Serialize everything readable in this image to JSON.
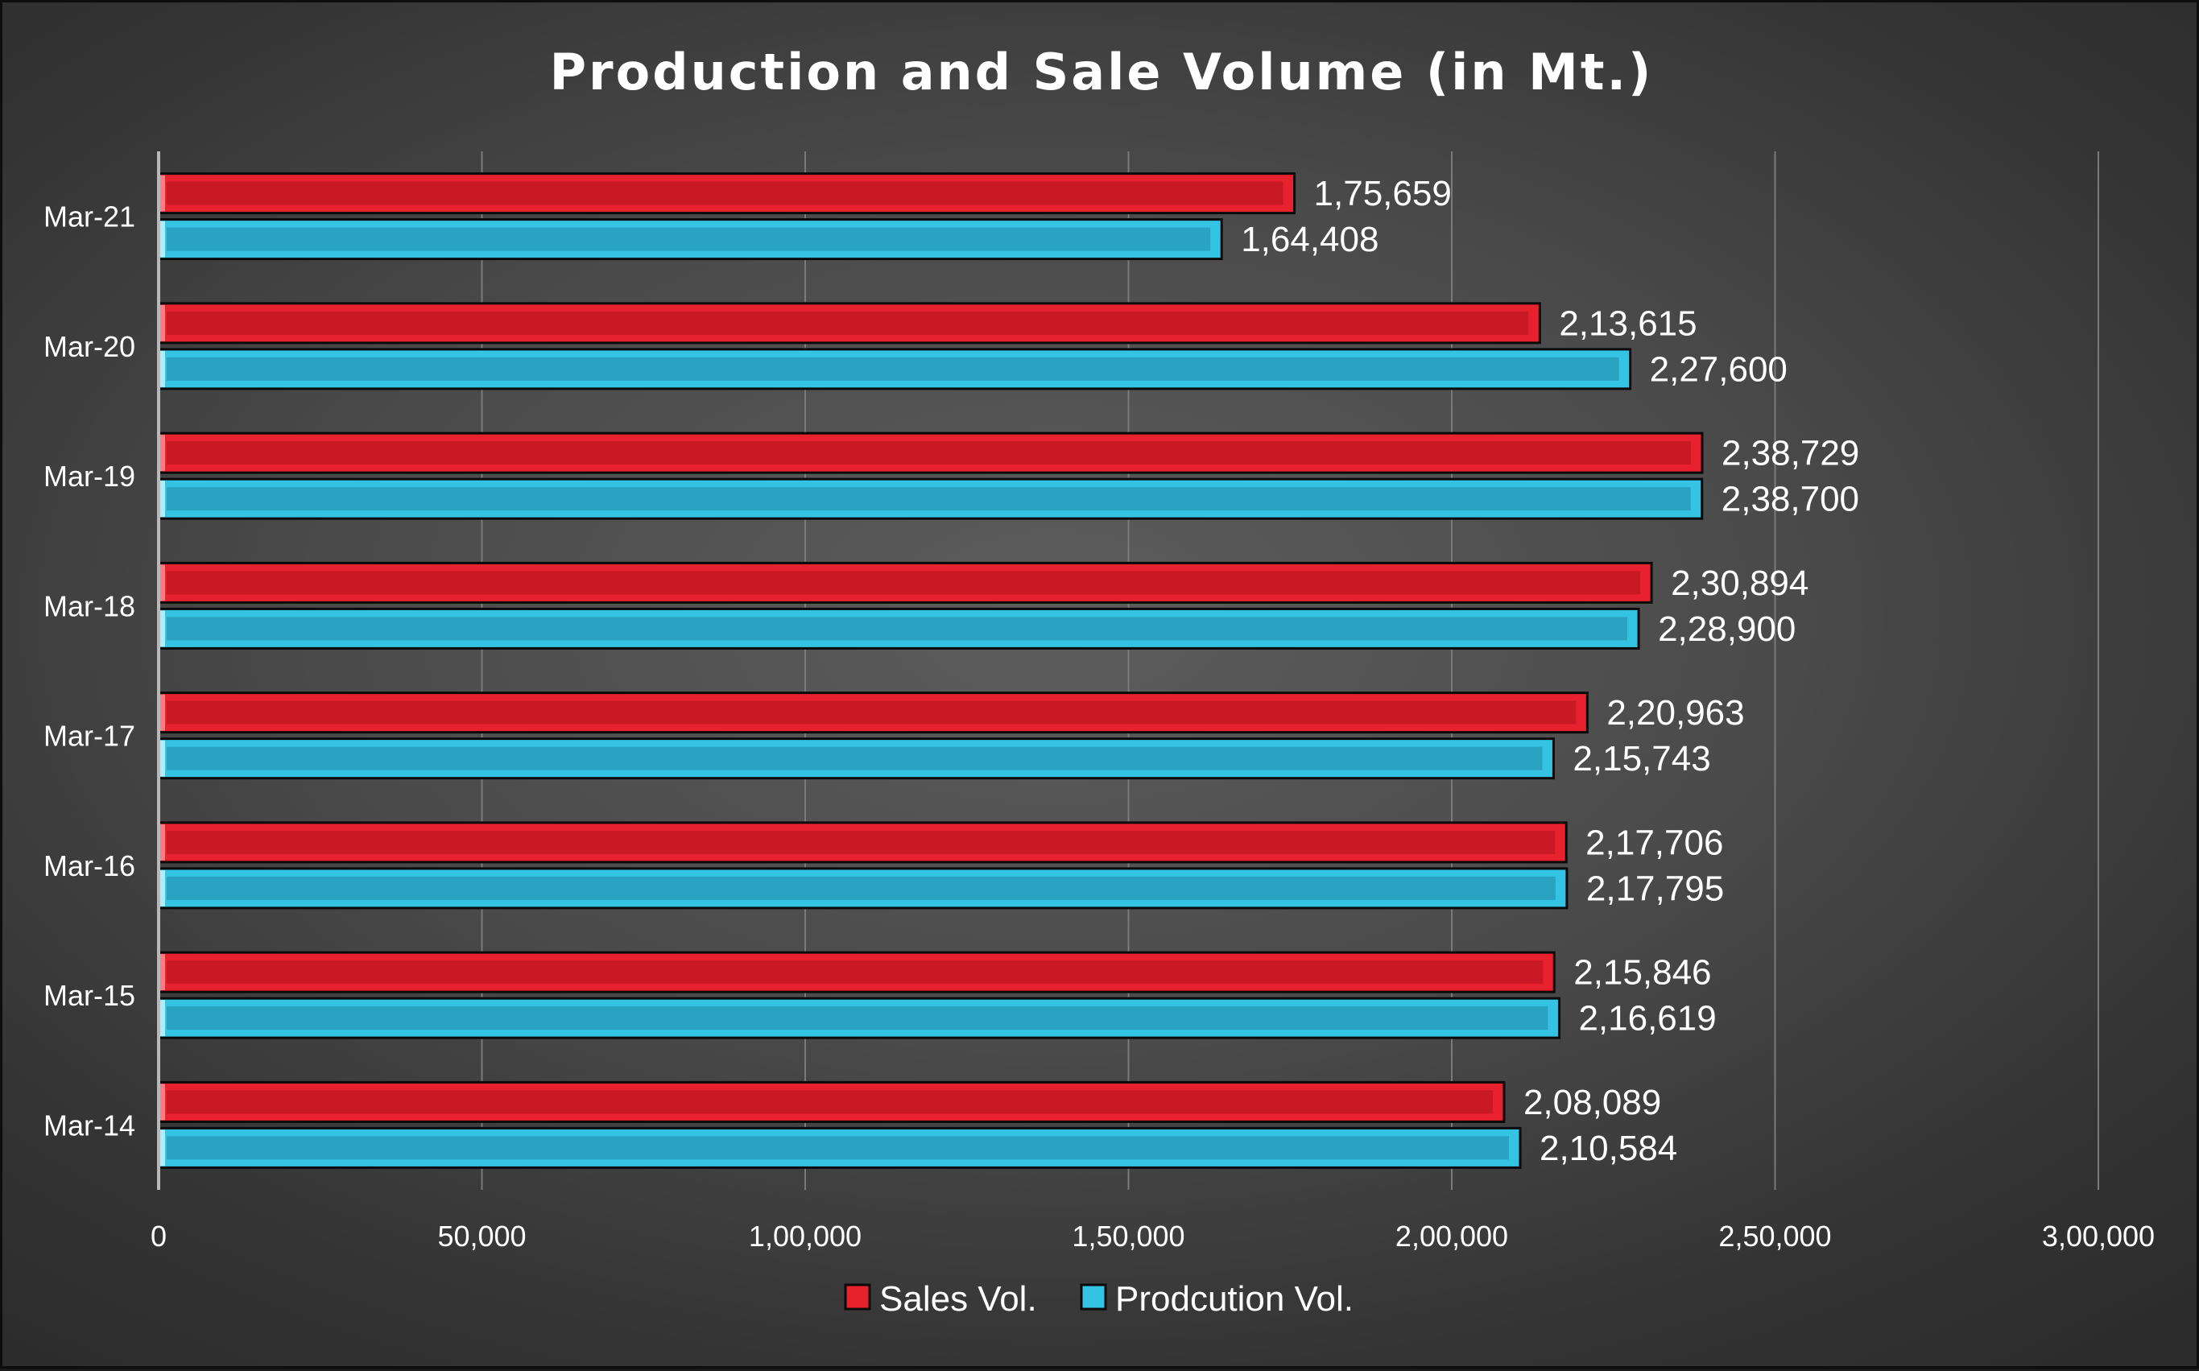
{
  "chart_data": {
    "type": "bar",
    "orientation": "horizontal",
    "title": "Production and Sale Volume (in Mt.)",
    "xlabel": "",
    "ylabel": "",
    "categories": [
      "Mar-21",
      "Mar-20",
      "Mar-19",
      "Mar-18",
      "Mar-17",
      "Mar-16",
      "Mar-15",
      "Mar-14"
    ],
    "series": [
      {
        "name": "Sales Vol.",
        "color": "#e8212f",
        "values": [
          175659,
          213615,
          238729,
          230894,
          220963,
          217706,
          215846,
          208089
        ],
        "labels": [
          "1,75,659",
          "2,13,615",
          "2,38,729",
          "2,30,894",
          "2,20,963",
          "2,17,706",
          "2,15,846",
          "2,08,089"
        ]
      },
      {
        "name": "Prodcution Vol.",
        "color": "#35c3e4",
        "values": [
          164408,
          227600,
          238700,
          228900,
          215743,
          217795,
          216619,
          210584
        ],
        "labels": [
          "1,64,408",
          "2,27,600",
          "2,38,700",
          "2,28,900",
          "2,15,743",
          "2,17,795",
          "2,16,619",
          "2,10,584"
        ]
      }
    ],
    "xlim": [
      0,
      300000
    ],
    "xticks": [
      0,
      50000,
      100000,
      150000,
      200000,
      250000,
      300000
    ],
    "xtick_labels": [
      "0",
      "50,000",
      "1,00,000",
      "1,50,000",
      "2,00,000",
      "2,50,000",
      "3,00,000"
    ],
    "grid": true,
    "legend_position": "bottom"
  }
}
